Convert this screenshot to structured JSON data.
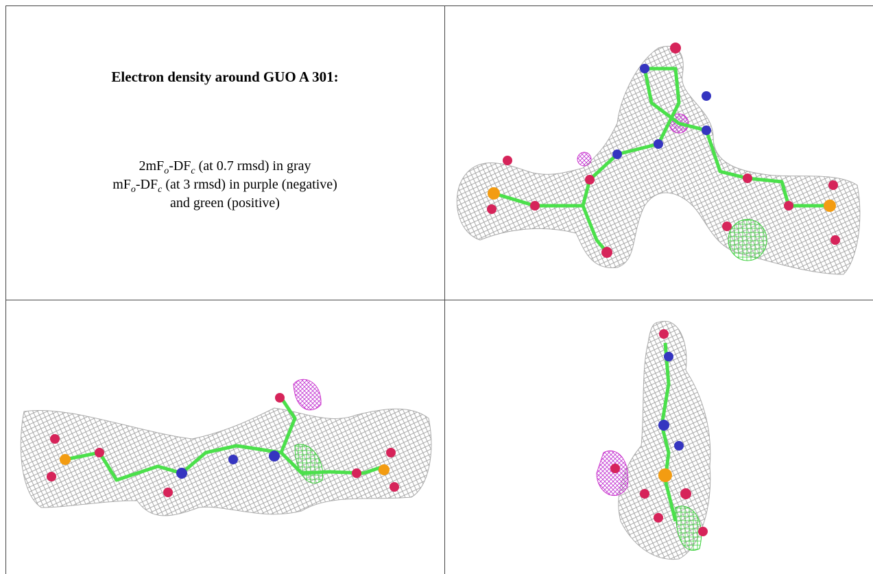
{
  "caption": {
    "title": "Electron density around GUO A 301:",
    "lines": [
      [
        "2mF",
        "o",
        "-DF",
        "c",
        " (at 0.7 rmsd) in gray"
      ],
      [
        "mF",
        "o",
        "-DF",
        "c",
        " (at 3 rmsd) in purple (negative)"
      ],
      [
        "and green (positive)"
      ]
    ]
  }
}
